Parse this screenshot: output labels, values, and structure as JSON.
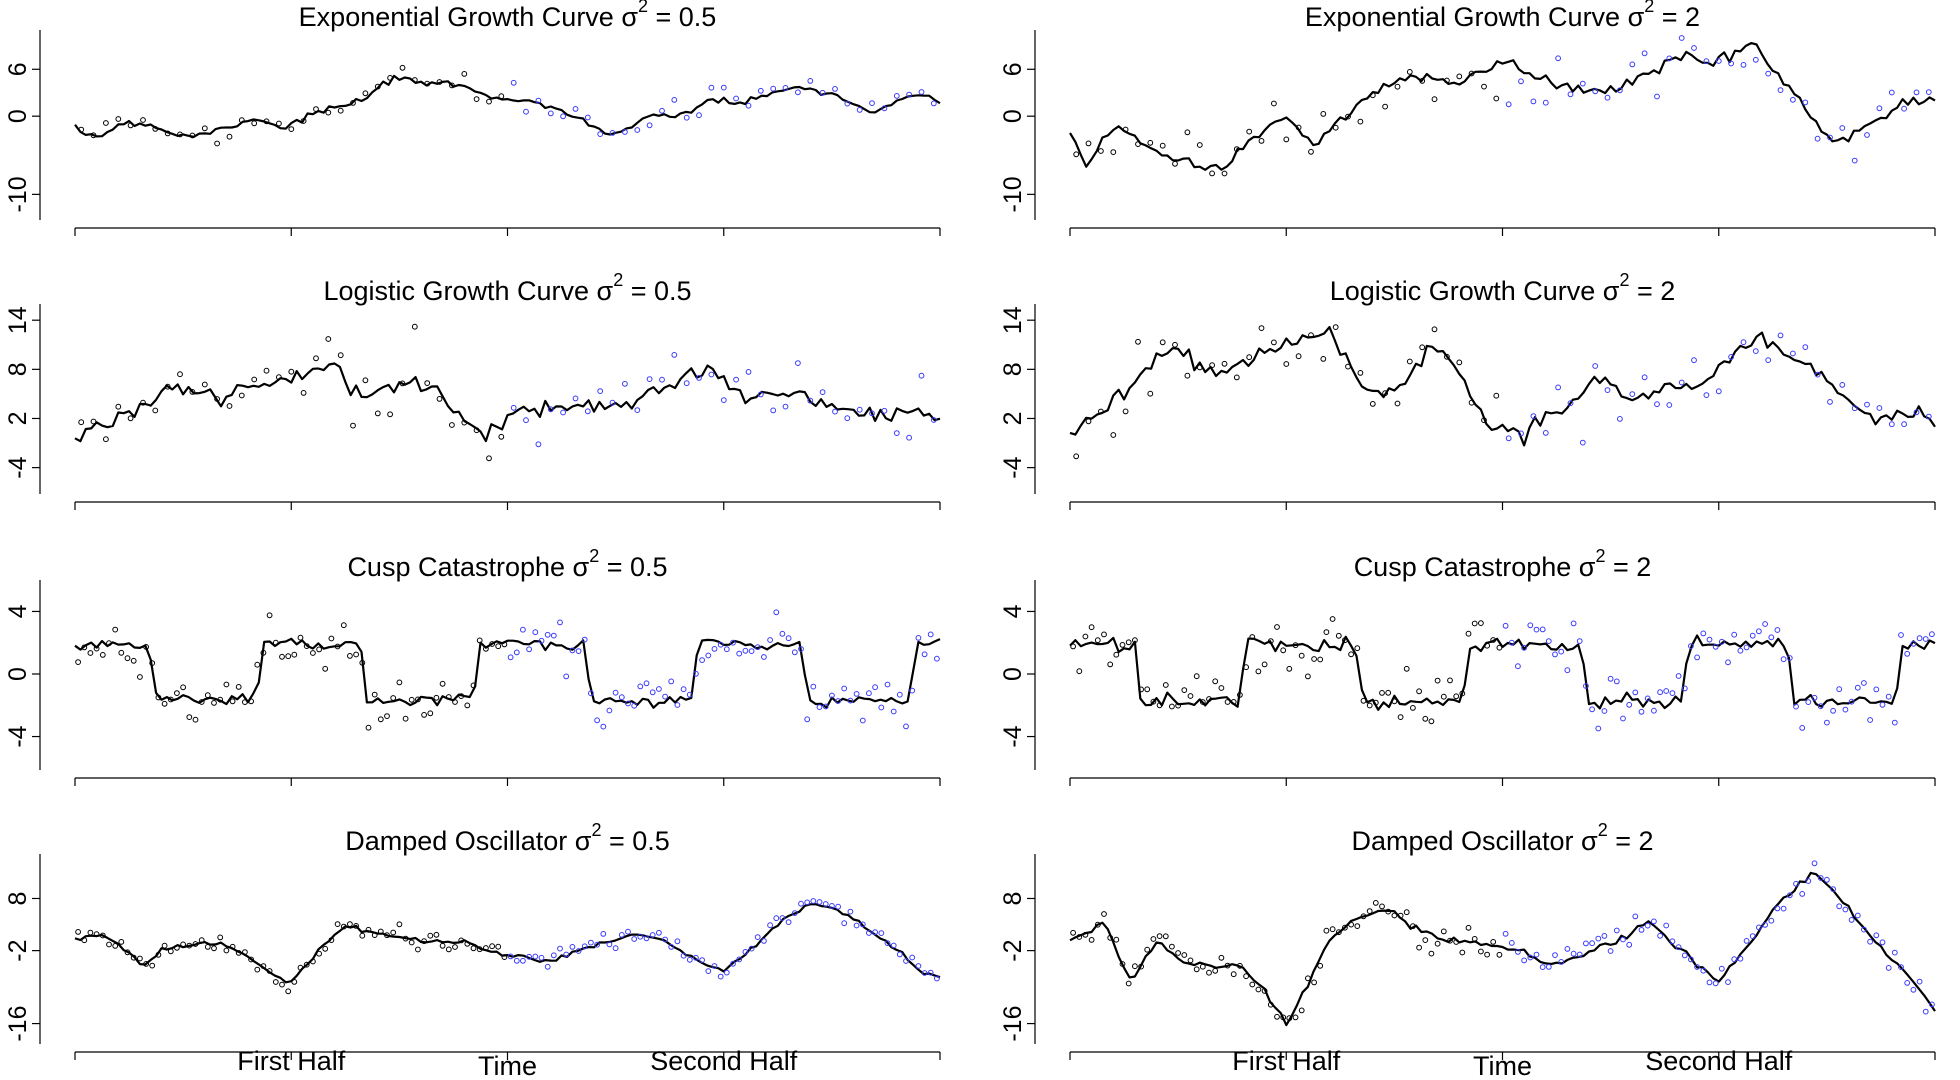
{
  "colors": {
    "first_half_points": "#000000",
    "second_half_points": "#3a3aff",
    "line": "#000000"
  },
  "x_axis": {
    "label": "Time",
    "first_half_label": "First Half",
    "second_half_label": "Second Half"
  },
  "chart_data": [
    {
      "type": "line",
      "title": "Exponential Growth Curve σ",
      "title_sup": "2",
      "title_suffix": " = 0.5",
      "ylim": [
        -12,
        10
      ],
      "yticks": [
        "-10",
        "0",
        "6"
      ],
      "ytick_values": [
        -10,
        0,
        6
      ],
      "n_points": 70,
      "n_split": 35,
      "line_knots": [
        [
          0,
          -2
        ],
        [
          3,
          -2.5
        ],
        [
          6,
          -0.6
        ],
        [
          9,
          -1.2
        ],
        [
          12,
          -2.5
        ],
        [
          15,
          -2.3
        ],
        [
          18,
          -1.2
        ],
        [
          21,
          -0.2
        ],
        [
          24,
          -1.5
        ],
        [
          28,
          0.5
        ],
        [
          33,
          1.8
        ],
        [
          36,
          4.5
        ],
        [
          41,
          4.3
        ],
        [
          45,
          3.8
        ],
        [
          48,
          2.6
        ],
        [
          53,
          1.8
        ],
        [
          58,
          0
        ],
        [
          62,
          -2.5
        ],
        [
          66,
          -0.5
        ],
        [
          71,
          0.6
        ],
        [
          74,
          2.1
        ],
        [
          78,
          1.6
        ],
        [
          83,
          4
        ],
        [
          88,
          2.5
        ],
        [
          92,
          0.5
        ],
        [
          97,
          2.8
        ],
        [
          100,
          1.5
        ]
      ],
      "point_noise": 1.3
    },
    {
      "type": "line",
      "title": "Exponential Growth Curve σ",
      "title_sup": "2",
      "title_suffix": " = 2",
      "ylim": [
        -12,
        10
      ],
      "yticks": [
        "-10",
        "0",
        "6"
      ],
      "ytick_values": [
        -10,
        0,
        6
      ],
      "n_points": 70,
      "n_split": 35,
      "line_knots": [
        [
          0,
          -2
        ],
        [
          2,
          -6.5
        ],
        [
          4,
          -3
        ],
        [
          6,
          -1
        ],
        [
          9,
          -4
        ],
        [
          14,
          -6
        ],
        [
          17,
          -7
        ],
        [
          21,
          -3
        ],
        [
          25,
          0
        ],
        [
          28,
          -3.5
        ],
        [
          31,
          -1
        ],
        [
          35,
          3
        ],
        [
          40,
          5.5
        ],
        [
          45,
          4.5
        ],
        [
          48,
          6
        ],
        [
          51,
          7
        ],
        [
          53,
          5
        ],
        [
          57,
          4
        ],
        [
          62,
          3
        ],
        [
          66,
          5
        ],
        [
          71,
          8
        ],
        [
          74,
          6.5
        ],
        [
          79,
          9.5
        ],
        [
          83,
          3.5
        ],
        [
          88,
          -3
        ],
        [
          92,
          -1.5
        ],
        [
          95,
          1
        ],
        [
          98,
          2.5
        ],
        [
          100,
          1.5
        ]
      ],
      "point_noise": 2.2
    },
    {
      "type": "line",
      "title": "Logistic Growth Curve σ",
      "title_sup": "2",
      "title_suffix": " = 0.5",
      "ylim": [
        -6,
        15
      ],
      "yticks": [
        "-4",
        "2",
        "8",
        "14"
      ],
      "ytick_values": [
        -4,
        2,
        8,
        14
      ],
      "n_points": 70,
      "n_split": 35,
      "line_knots": [
        [
          0,
          0
        ],
        [
          6,
          2.5
        ],
        [
          12,
          6
        ],
        [
          17,
          4.5
        ],
        [
          21,
          6
        ],
        [
          25,
          7
        ],
        [
          30,
          8.5
        ],
        [
          33,
          4.5
        ],
        [
          37,
          5.5
        ],
        [
          40,
          7.5
        ],
        [
          43,
          4
        ],
        [
          47,
          0
        ],
        [
          52,
          3
        ],
        [
          58,
          3.5
        ],
        [
          63,
          4
        ],
        [
          68,
          6
        ],
        [
          73,
          8
        ],
        [
          78,
          4.5
        ],
        [
          83,
          5
        ],
        [
          88,
          3.5
        ],
        [
          93,
          2
        ],
        [
          97,
          3.5
        ],
        [
          100,
          1
        ]
      ],
      "point_noise": 2.8
    },
    {
      "type": "line",
      "title": "Logistic Growth Curve σ",
      "title_sup": "2",
      "title_suffix": " = 2",
      "ylim": [
        -6,
        15
      ],
      "yticks": [
        "-4",
        "2",
        "8",
        "14"
      ],
      "ytick_values": [
        -4,
        2,
        8,
        14
      ],
      "n_points": 70,
      "n_split": 35,
      "line_knots": [
        [
          0,
          0
        ],
        [
          4,
          3
        ],
        [
          8,
          7
        ],
        [
          12,
          11
        ],
        [
          17,
          7
        ],
        [
          22,
          10
        ],
        [
          26,
          11
        ],
        [
          30,
          13
        ],
        [
          34,
          5
        ],
        [
          38,
          6
        ],
        [
          42,
          11
        ],
        [
          45,
          8
        ],
        [
          48,
          1
        ],
        [
          52,
          0.5
        ],
        [
          57,
          3
        ],
        [
          61,
          7
        ],
        [
          65,
          4
        ],
        [
          69,
          6
        ],
        [
          73,
          6
        ],
        [
          77,
          10
        ],
        [
          80,
          12
        ],
        [
          84,
          9
        ],
        [
          88,
          6
        ],
        [
          92,
          3
        ],
        [
          95,
          1.5
        ],
        [
          98,
          3.5
        ],
        [
          100,
          1
        ]
      ],
      "point_noise": 2.8
    },
    {
      "type": "line",
      "title": "Cusp Catastrophe σ",
      "title_sup": "2",
      "title_suffix": " = 0.5",
      "ylim": [
        -5.5,
        5.5
      ],
      "yticks": [
        "-4",
        "0",
        "4"
      ],
      "ytick_values": [
        -4,
        0,
        4
      ],
      "n_points": 140,
      "n_split": 70,
      "line_knots": [
        [
          0,
          2
        ],
        [
          8.5,
          1.8
        ],
        [
          9.5,
          -1.8
        ],
        [
          21,
          -1.5
        ],
        [
          21.7,
          2
        ],
        [
          33,
          1.8
        ],
        [
          33.7,
          -1.8
        ],
        [
          46,
          -1.6
        ],
        [
          46.7,
          2
        ],
        [
          59,
          1.7
        ],
        [
          59.7,
          -1.8
        ],
        [
          71.5,
          -1.6
        ],
        [
          72,
          2
        ],
        [
          84,
          1.8
        ],
        [
          84.7,
          -1.8
        ],
        [
          96.5,
          -1.6
        ],
        [
          97.2,
          2
        ],
        [
          100,
          1.8
        ]
      ],
      "point_noise": 1.1
    },
    {
      "type": "line",
      "title": "Cusp Catastrophe σ",
      "title_sup": "2",
      "title_suffix": " = 2",
      "ylim": [
        -5.5,
        5.5
      ],
      "yticks": [
        "-4",
        "0",
        "4"
      ],
      "ytick_values": [
        -4,
        0,
        4
      ],
      "n_points": 140,
      "n_split": 70,
      "line_knots": [
        [
          0,
          2
        ],
        [
          7.5,
          1.8
        ],
        [
          8,
          -1.8
        ],
        [
          19.5,
          -1.8
        ],
        [
          20.5,
          2
        ],
        [
          33,
          1.8
        ],
        [
          34,
          -1.8
        ],
        [
          45.5,
          -1.7
        ],
        [
          46,
          2
        ],
        [
          59,
          1.8
        ],
        [
          60,
          -1.8
        ],
        [
          71,
          -1.7
        ],
        [
          71.5,
          2
        ],
        [
          83,
          1.8
        ],
        [
          83.7,
          -1.8
        ],
        [
          95.5,
          -1.7
        ],
        [
          96,
          2
        ],
        [
          100,
          1.8
        ]
      ],
      "point_noise": 1.2
    },
    {
      "type": "line",
      "title": "Damped Oscillator σ",
      "title_sup": "2",
      "title_suffix": " = 0.5",
      "ylim": [
        -18,
        15
      ],
      "yticks": [
        "-16",
        "-2",
        "8"
      ],
      "ytick_values": [
        -16,
        -2,
        8
      ],
      "n_points": 140,
      "n_split": 70,
      "line_knots": [
        [
          0,
          0
        ],
        [
          3,
          1
        ],
        [
          5,
          -1
        ],
        [
          8,
          -5
        ],
        [
          10,
          -2
        ],
        [
          13,
          -1
        ],
        [
          17,
          -0.5
        ],
        [
          20,
          -3
        ],
        [
          23,
          -7
        ],
        [
          25,
          -8
        ],
        [
          27,
          -4
        ],
        [
          31,
          3
        ],
        [
          36,
          1
        ],
        [
          40,
          0
        ],
        [
          45,
          -0.5
        ],
        [
          50,
          -3
        ],
        [
          55,
          -4
        ],
        [
          60,
          -1
        ],
        [
          65,
          1
        ],
        [
          68,
          0
        ],
        [
          72,
          -4
        ],
        [
          75,
          -6
        ],
        [
          78,
          -2
        ],
        [
          81,
          3
        ],
        [
          85,
          7
        ],
        [
          88,
          6
        ],
        [
          91,
          3
        ],
        [
          95,
          -2
        ],
        [
          98,
          -6
        ],
        [
          100,
          -7
        ]
      ],
      "point_noise": 1.2
    },
    {
      "type": "line",
      "title": "Damped Oscillator σ",
      "title_sup": "2",
      "title_suffix": " = 2",
      "ylim": [
        -18,
        15
      ],
      "yticks": [
        "-16",
        "-2",
        "8"
      ],
      "ytick_values": [
        -16,
        -2,
        8
      ],
      "n_points": 140,
      "n_split": 70,
      "line_knots": [
        [
          0,
          0
        ],
        [
          4,
          3
        ],
        [
          7,
          -8
        ],
        [
          10,
          0
        ],
        [
          13,
          -4
        ],
        [
          17,
          -5
        ],
        [
          20,
          -5
        ],
        [
          22,
          -9
        ],
        [
          25,
          -16
        ],
        [
          27,
          -10
        ],
        [
          30,
          0
        ],
        [
          33,
          4
        ],
        [
          37,
          6
        ],
        [
          40,
          2
        ],
        [
          44,
          0
        ],
        [
          49,
          -1
        ],
        [
          52,
          -2
        ],
        [
          56,
          -5
        ],
        [
          60,
          -2
        ],
        [
          64,
          0
        ],
        [
          67,
          4
        ],
        [
          70,
          -1
        ],
        [
          73,
          -5
        ],
        [
          75,
          -8
        ],
        [
          78,
          -2
        ],
        [
          81,
          5
        ],
        [
          84,
          10
        ],
        [
          86,
          13
        ],
        [
          88,
          10
        ],
        [
          90,
          6
        ],
        [
          94,
          -2
        ],
        [
          97,
          -7
        ],
        [
          100,
          -14
        ]
      ],
      "point_noise": 1.8
    }
  ]
}
